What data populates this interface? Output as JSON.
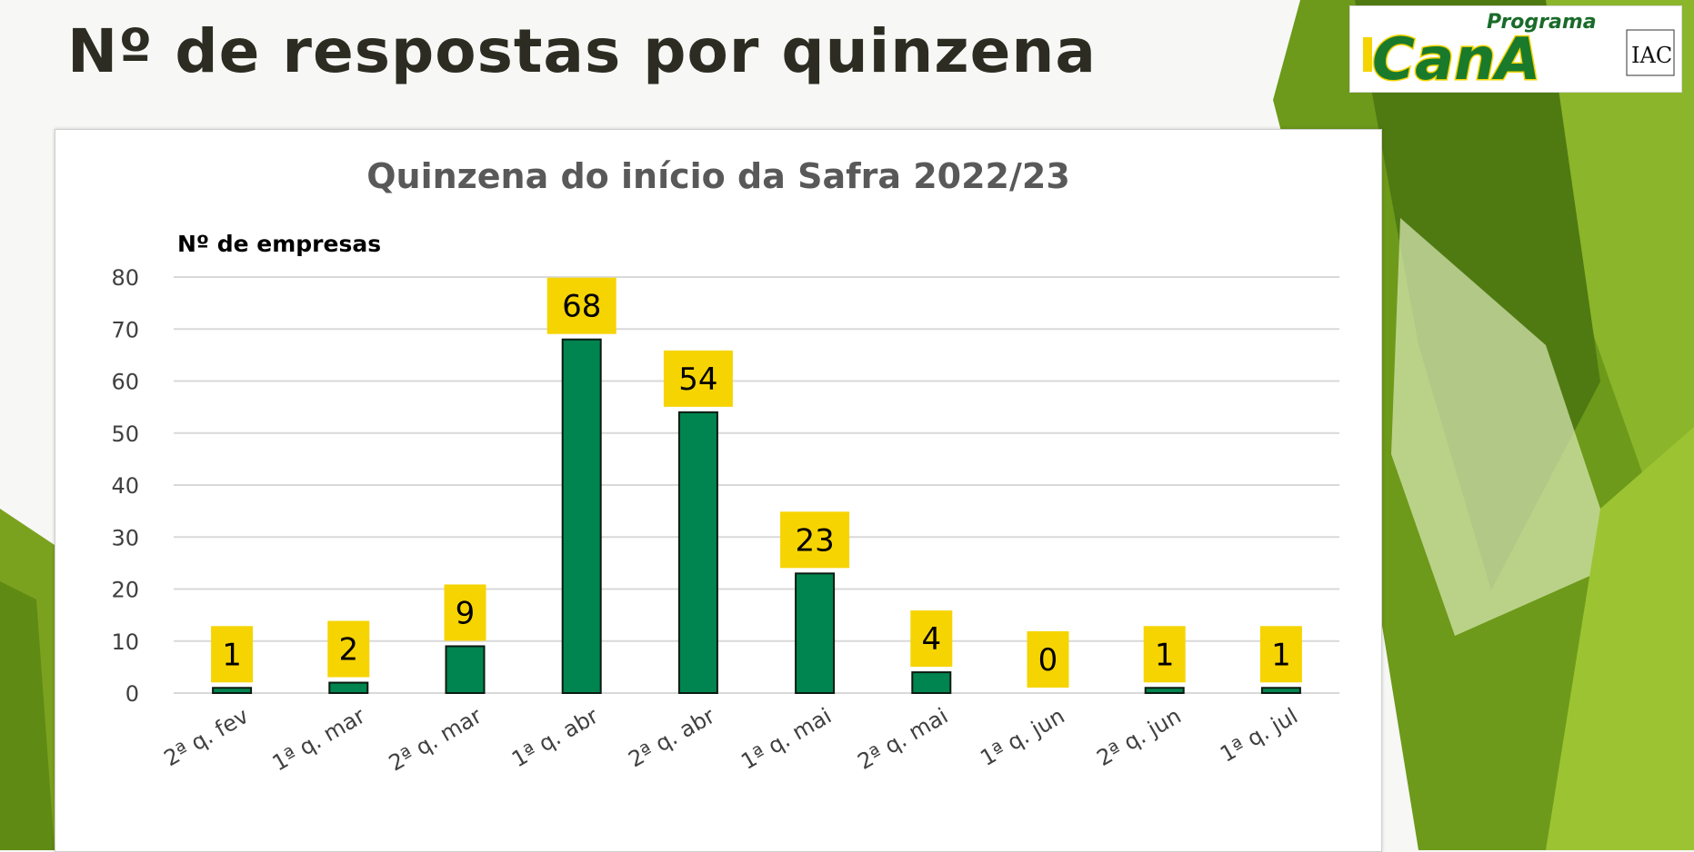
{
  "slide": {
    "title": "Nº de respostas por quinzena"
  },
  "logo": {
    "text_top": "Programa",
    "text_main": "CanA",
    "text_side": "IAC"
  },
  "chart_data": {
    "type": "bar",
    "title": "Quinzena do início da Safra 2022/23",
    "ylabel": "Nº de empresas",
    "xlabel": "",
    "categories": [
      "2ª q. fev",
      "1ª q. mar",
      "2ª q. mar",
      "1ª q. abr",
      "2ª q. abr",
      "1ª q. mai",
      "2ª q. mai",
      "1ª q. jun",
      "2ª q. jun",
      "1ª q. jul"
    ],
    "values": [
      1,
      2,
      9,
      68,
      54,
      23,
      4,
      0,
      1,
      1
    ],
    "ylim": [
      0,
      80
    ],
    "yticks": [
      0,
      10,
      20,
      30,
      40,
      50,
      60,
      70,
      80
    ],
    "grid": true,
    "legend": "none",
    "colors": {
      "bar": "#008550",
      "bar_outline": "#0b1a10",
      "label_bg": "#f6d402",
      "gridline": "#d9d9d9",
      "tick_text": "#404040",
      "title_text": "#595959"
    }
  }
}
